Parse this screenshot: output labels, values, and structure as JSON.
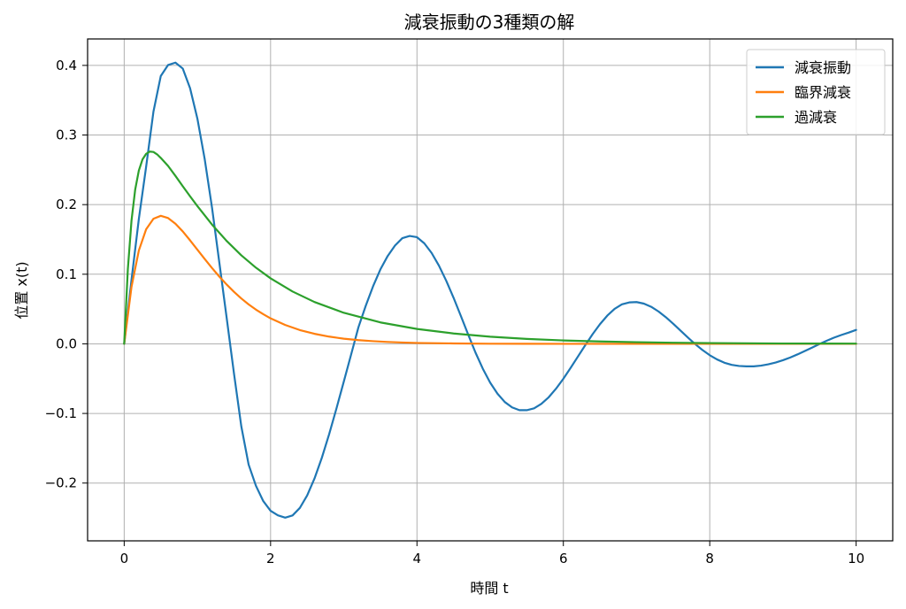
{
  "chart_data": {
    "type": "line",
    "title": "減衰振動の3種類の解",
    "xlabel": "時間 t",
    "ylabel": "位置 x(t)",
    "xlim": [
      -0.5,
      10.5
    ],
    "ylim": [
      -0.283,
      0.438
    ],
    "xticks": [
      0,
      2,
      4,
      6,
      8,
      10
    ],
    "xtick_labels": [
      "0",
      "2",
      "4",
      "6",
      "8",
      "10"
    ],
    "yticks": [
      -0.2,
      -0.1,
      0.0,
      0.1,
      0.2,
      0.3,
      0.4
    ],
    "ytick_labels": [
      "−0.2",
      "−0.1",
      "0.0",
      "0.1",
      "0.2",
      "0.3",
      "0.4"
    ],
    "grid": true,
    "legend_position": "top-right",
    "series": [
      {
        "name": "減衰振動",
        "color": "#1f77b4",
        "x": [
          0,
          0.1,
          0.2,
          0.3,
          0.4,
          0.5,
          0.6,
          0.7,
          0.8,
          0.9,
          1.0,
          1.1,
          1.2,
          1.3,
          1.4,
          1.5,
          1.6,
          1.7,
          1.8,
          1.9,
          2.0,
          2.1,
          2.2,
          2.3,
          2.4,
          2.5,
          2.6,
          2.7,
          2.8,
          2.9,
          3.0,
          3.1,
          3.2,
          3.3,
          3.4,
          3.5,
          3.6,
          3.7,
          3.8,
          3.9,
          4.0,
          4.1,
          4.2,
          4.3,
          4.4,
          4.5,
          4.6,
          4.7,
          4.8,
          4.9,
          5.0,
          5.1,
          5.2,
          5.3,
          5.4,
          5.5,
          5.6,
          5.7,
          5.8,
          5.9,
          6.0,
          6.1,
          6.2,
          6.3,
          6.4,
          6.5,
          6.6,
          6.7,
          6.8,
          6.9,
          7.0,
          7.1,
          7.2,
          7.3,
          7.4,
          7.5,
          7.6,
          7.7,
          7.8,
          7.9,
          8.0,
          8.1,
          8.2,
          8.3,
          8.4,
          8.5,
          8.6,
          8.7,
          8.8,
          8.9,
          9.0,
          9.1,
          9.2,
          9.3,
          9.4,
          9.5,
          9.6,
          9.7,
          9.8,
          9.9,
          10.0
        ],
        "values": [
          0.0,
          0.0921,
          0.1792,
          0.2546,
          0.3337,
          0.3848,
          0.4006,
          0.404,
          0.3955,
          0.3673,
          0.3236,
          0.2654,
          0.1956,
          0.1167,
          0.0374,
          -0.0425,
          -0.1185,
          -0.1734,
          -0.2039,
          -0.2259,
          -0.2398,
          -0.2464,
          -0.2497,
          -0.2465,
          -0.2357,
          -0.2178,
          -0.1935,
          -0.1638,
          -0.1298,
          -0.0929,
          -0.0543,
          -0.0155,
          0.0237,
          0.0546,
          0.0826,
          0.1069,
          0.1262,
          0.1412,
          0.1518,
          0.155,
          0.1532,
          0.1444,
          0.1306,
          0.1124,
          0.0906,
          0.0662,
          0.04,
          0.0133,
          -0.0126,
          -0.0358,
          -0.0557,
          -0.0716,
          -0.0836,
          -0.0913,
          -0.0953,
          -0.0953,
          -0.0927,
          -0.0862,
          -0.0767,
          -0.0644,
          -0.0501,
          -0.0344,
          -0.0181,
          -0.0018,
          0.0139,
          0.0282,
          0.0405,
          0.0503,
          0.0567,
          0.0595,
          0.06,
          0.0578,
          0.0532,
          0.0465,
          0.0383,
          0.029,
          0.0191,
          0.0092,
          -0.0003,
          -0.0088,
          -0.0163,
          -0.0224,
          -0.0271,
          -0.0302,
          -0.0318,
          -0.0323,
          -0.0323,
          -0.0313,
          -0.0294,
          -0.0268,
          -0.0235,
          -0.0196,
          -0.0151,
          -0.0103,
          -0.0053,
          -0.0003,
          0.0046,
          0.009,
          0.0128,
          0.0162,
          0.02
        ]
      },
      {
        "name": "臨界減衰",
        "color": "#ff7f0e",
        "x": [
          0,
          0.1,
          0.2,
          0.3,
          0.4,
          0.5,
          0.6,
          0.7,
          0.8,
          0.9,
          1.0,
          1.1,
          1.2,
          1.3,
          1.4,
          1.5,
          1.6,
          1.7,
          1.8,
          1.9,
          2.0,
          2.2,
          2.4,
          2.6,
          2.8,
          3.0,
          3.2,
          3.4,
          3.6,
          3.8,
          4.0,
          4.5,
          5.0,
          5.5,
          6.0,
          7.0,
          8.0,
          9.0,
          10.0
        ],
        "values": [
          0.0,
          0.0819,
          0.134,
          0.1646,
          0.1797,
          0.1839,
          0.1807,
          0.1726,
          0.1615,
          0.1487,
          0.1353,
          0.1219,
          0.1089,
          0.0966,
          0.0852,
          0.0747,
          0.0652,
          0.0567,
          0.0492,
          0.0426,
          0.0366,
          0.0271,
          0.0198,
          0.0144,
          0.0104,
          0.0074,
          0.0053,
          0.0038,
          0.0027,
          0.0019,
          0.0013,
          0.0006,
          0.0002,
          0.0001,
          0.0,
          0.0,
          0.0,
          0.0,
          0.0
        ]
      },
      {
        "name": "過減衰",
        "color": "#2ca02c",
        "x": [
          0,
          0.05,
          0.1,
          0.15,
          0.2,
          0.25,
          0.3,
          0.35,
          0.4,
          0.45,
          0.5,
          0.6,
          0.7,
          0.8,
          0.9,
          1.0,
          1.2,
          1.4,
          1.6,
          1.8,
          2.0,
          2.3,
          2.6,
          3.0,
          3.5,
          4.0,
          4.5,
          5.0,
          5.5,
          6.0,
          6.5,
          7.0,
          7.5,
          8.0,
          8.5,
          9.0,
          9.5,
          10.0
        ],
        "values": [
          0.0,
          0.1073,
          0.1772,
          0.2214,
          0.2489,
          0.2649,
          0.273,
          0.2762,
          0.2756,
          0.2722,
          0.2671,
          0.2555,
          0.2413,
          0.2265,
          0.212,
          0.1979,
          0.1713,
          0.1478,
          0.1272,
          0.1094,
          0.0941,
          0.0752,
          0.0601,
          0.0446,
          0.0308,
          0.0214,
          0.0149,
          0.0103,
          0.0071,
          0.0049,
          0.0034,
          0.0024,
          0.0016,
          0.0011,
          0.0008,
          0.0005,
          0.0004,
          0.0003
        ]
      }
    ]
  }
}
